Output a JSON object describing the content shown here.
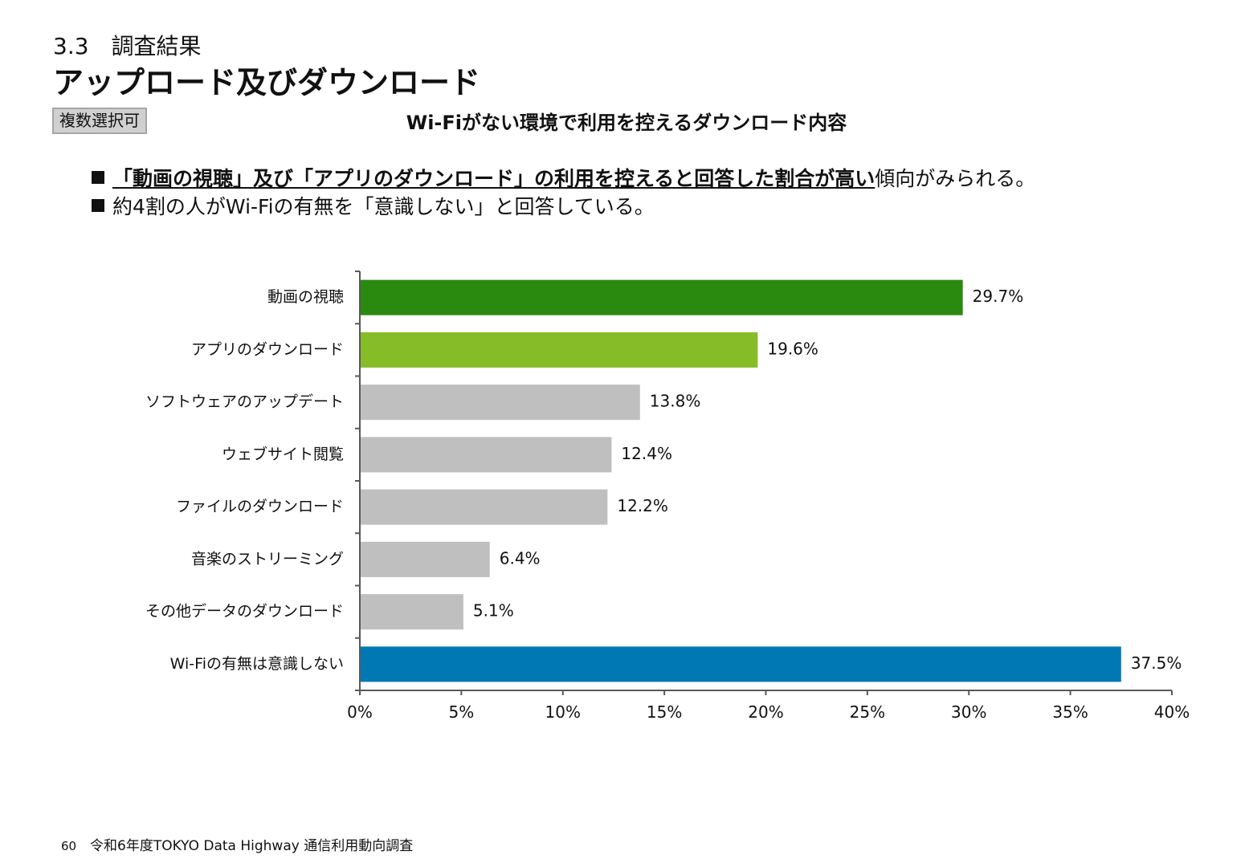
{
  "header": {
    "section": "3.3　調査結果",
    "title": "アップロード及びダウンロード"
  },
  "badge": "複数選択可",
  "bullets": {
    "b1_highlight": "「動画の視聴」及び「アプリのダウンロード」の利用を控えると回答した割合が高い",
    "b1_rest": "傾向がみられる。",
    "b2": "約4割の人がWi-Fiの有無を「意識しない」と回答している。"
  },
  "footer": {
    "page": "60",
    "text": "令和6年度TOKYO Data Highway 通信利用動向調査"
  },
  "chart_data": {
    "type": "bar",
    "orientation": "horizontal",
    "title": "Wi-Fiがない環境で利用を控えるダウンロード内容",
    "categories": [
      "動画の視聴",
      "アプリのダウンロード",
      "ソフトウェアのアップデート",
      "ウェブサイト閲覧",
      "ファイルのダウンロード",
      "音楽のストリーミング",
      "その他データのダウンロード",
      "Wi-Fiの有無は意識しない"
    ],
    "values": [
      29.7,
      19.6,
      13.8,
      12.4,
      12.2,
      6.4,
      5.1,
      37.5
    ],
    "value_labels": [
      "29.7%",
      "19.6%",
      "13.8%",
      "12.4%",
      "12.2%",
      "6.4%",
      "5.1%",
      "37.5%"
    ],
    "bar_colors": [
      "#2a8a10",
      "#86bc28",
      "#bfbfbf",
      "#bfbfbf",
      "#bfbfbf",
      "#bfbfbf",
      "#bfbfbf",
      "#0078b4"
    ],
    "xlim": [
      0,
      40
    ],
    "xticks": [
      0,
      5,
      10,
      15,
      20,
      25,
      30,
      35,
      40
    ],
    "xtick_labels": [
      "0%",
      "5%",
      "10%",
      "15%",
      "20%",
      "25%",
      "30%",
      "35%",
      "40%"
    ],
    "grid": false,
    "legend": "none"
  }
}
